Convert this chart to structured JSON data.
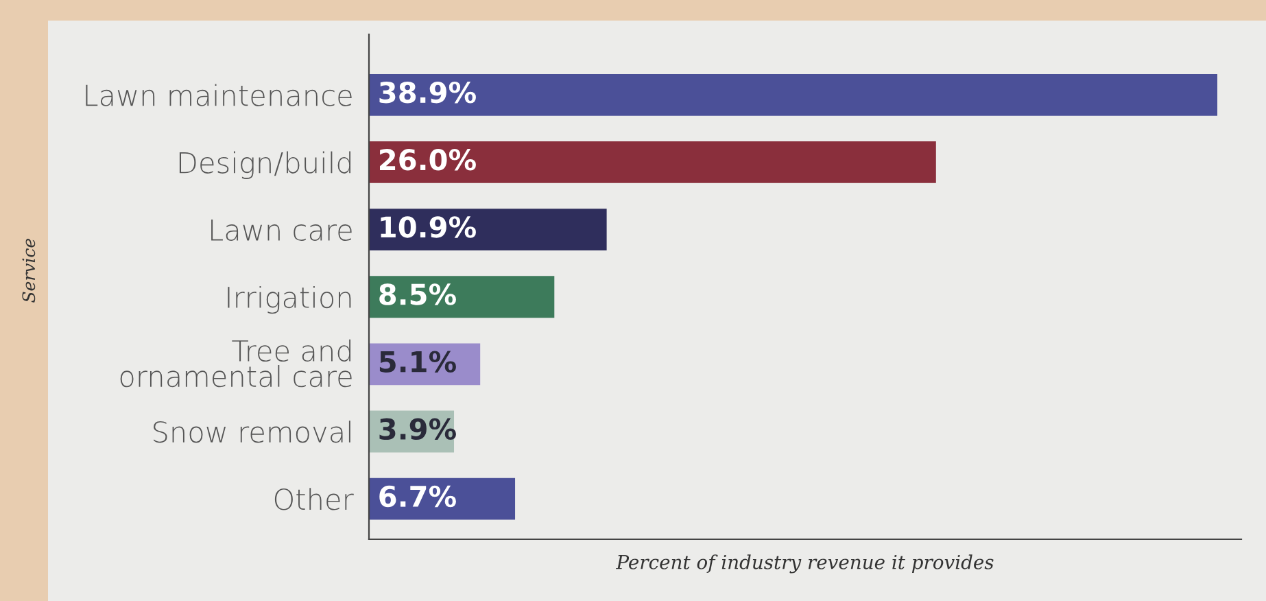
{
  "chart_data": {
    "type": "bar",
    "orientation": "horizontal",
    "xlabel": "Percent of industry revenue it provides",
    "ylabel": "Service",
    "categories": [
      "Lawn maintenance",
      "Design/build",
      "Lawn care",
      "Irrigation",
      "Tree and\nornamental care",
      "Snow removal",
      "Other"
    ],
    "values": [
      38.9,
      26.0,
      10.9,
      8.5,
      5.1,
      3.9,
      6.7
    ],
    "colors": [
      "#4b5098",
      "#8a2f3c",
      "#2f2e5c",
      "#3d7b5b",
      "#9a8ccb",
      "#aac0b6",
      "#4b5098"
    ],
    "value_labels": [
      "38.9%",
      "26.0%",
      "10.9%",
      "8.5%",
      "5.1%",
      "3.9%",
      "6.7%"
    ],
    "xlim": [
      0,
      40
    ],
    "grid": false,
    "legend": false
  }
}
